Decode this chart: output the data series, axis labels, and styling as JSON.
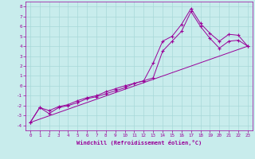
{
  "xlabel": "Windchill (Refroidissement éolien,°C)",
  "bg_color": "#c8ecec",
  "line_color": "#990099",
  "grid_color": "#a8d8d8",
  "xlim": [
    -0.5,
    23.5
  ],
  "ylim": [
    -4.5,
    8.5
  ],
  "xticks": [
    0,
    1,
    2,
    3,
    4,
    5,
    6,
    7,
    8,
    9,
    10,
    11,
    12,
    13,
    14,
    15,
    16,
    17,
    18,
    19,
    20,
    21,
    22,
    23
  ],
  "yticks": [
    -4,
    -3,
    -2,
    -1,
    0,
    1,
    2,
    3,
    4,
    5,
    6,
    7,
    8
  ],
  "line1_x": [
    0,
    1,
    2,
    3,
    4,
    5,
    6,
    7,
    8,
    9,
    10,
    11,
    12,
    13,
    14,
    15,
    16,
    17,
    18,
    19,
    20,
    21,
    22,
    23
  ],
  "line1_y": [
    -3.7,
    -2.2,
    -2.8,
    -2.2,
    -2.0,
    -1.7,
    -1.3,
    -1.1,
    -0.8,
    -0.5,
    -0.2,
    0.25,
    0.5,
    2.3,
    4.5,
    5.0,
    6.2,
    7.8,
    6.3,
    5.3,
    4.5,
    5.2,
    5.1,
    4.0
  ],
  "line2_x": [
    0,
    1,
    2,
    3,
    4,
    5,
    6,
    7,
    8,
    9,
    10,
    11,
    12,
    13,
    14,
    15,
    16,
    17,
    18,
    19,
    20,
    21,
    22,
    23
  ],
  "line2_y": [
    -3.7,
    -2.2,
    -2.5,
    -2.1,
    -1.9,
    -1.5,
    -1.2,
    -1.0,
    -0.6,
    -0.3,
    0.0,
    0.25,
    0.5,
    0.8,
    3.5,
    4.5,
    5.5,
    7.5,
    6.0,
    4.8,
    3.8,
    4.5,
    4.6,
    4.0
  ],
  "line3_x": [
    0,
    23
  ],
  "line3_y": [
    -3.7,
    4.0
  ]
}
